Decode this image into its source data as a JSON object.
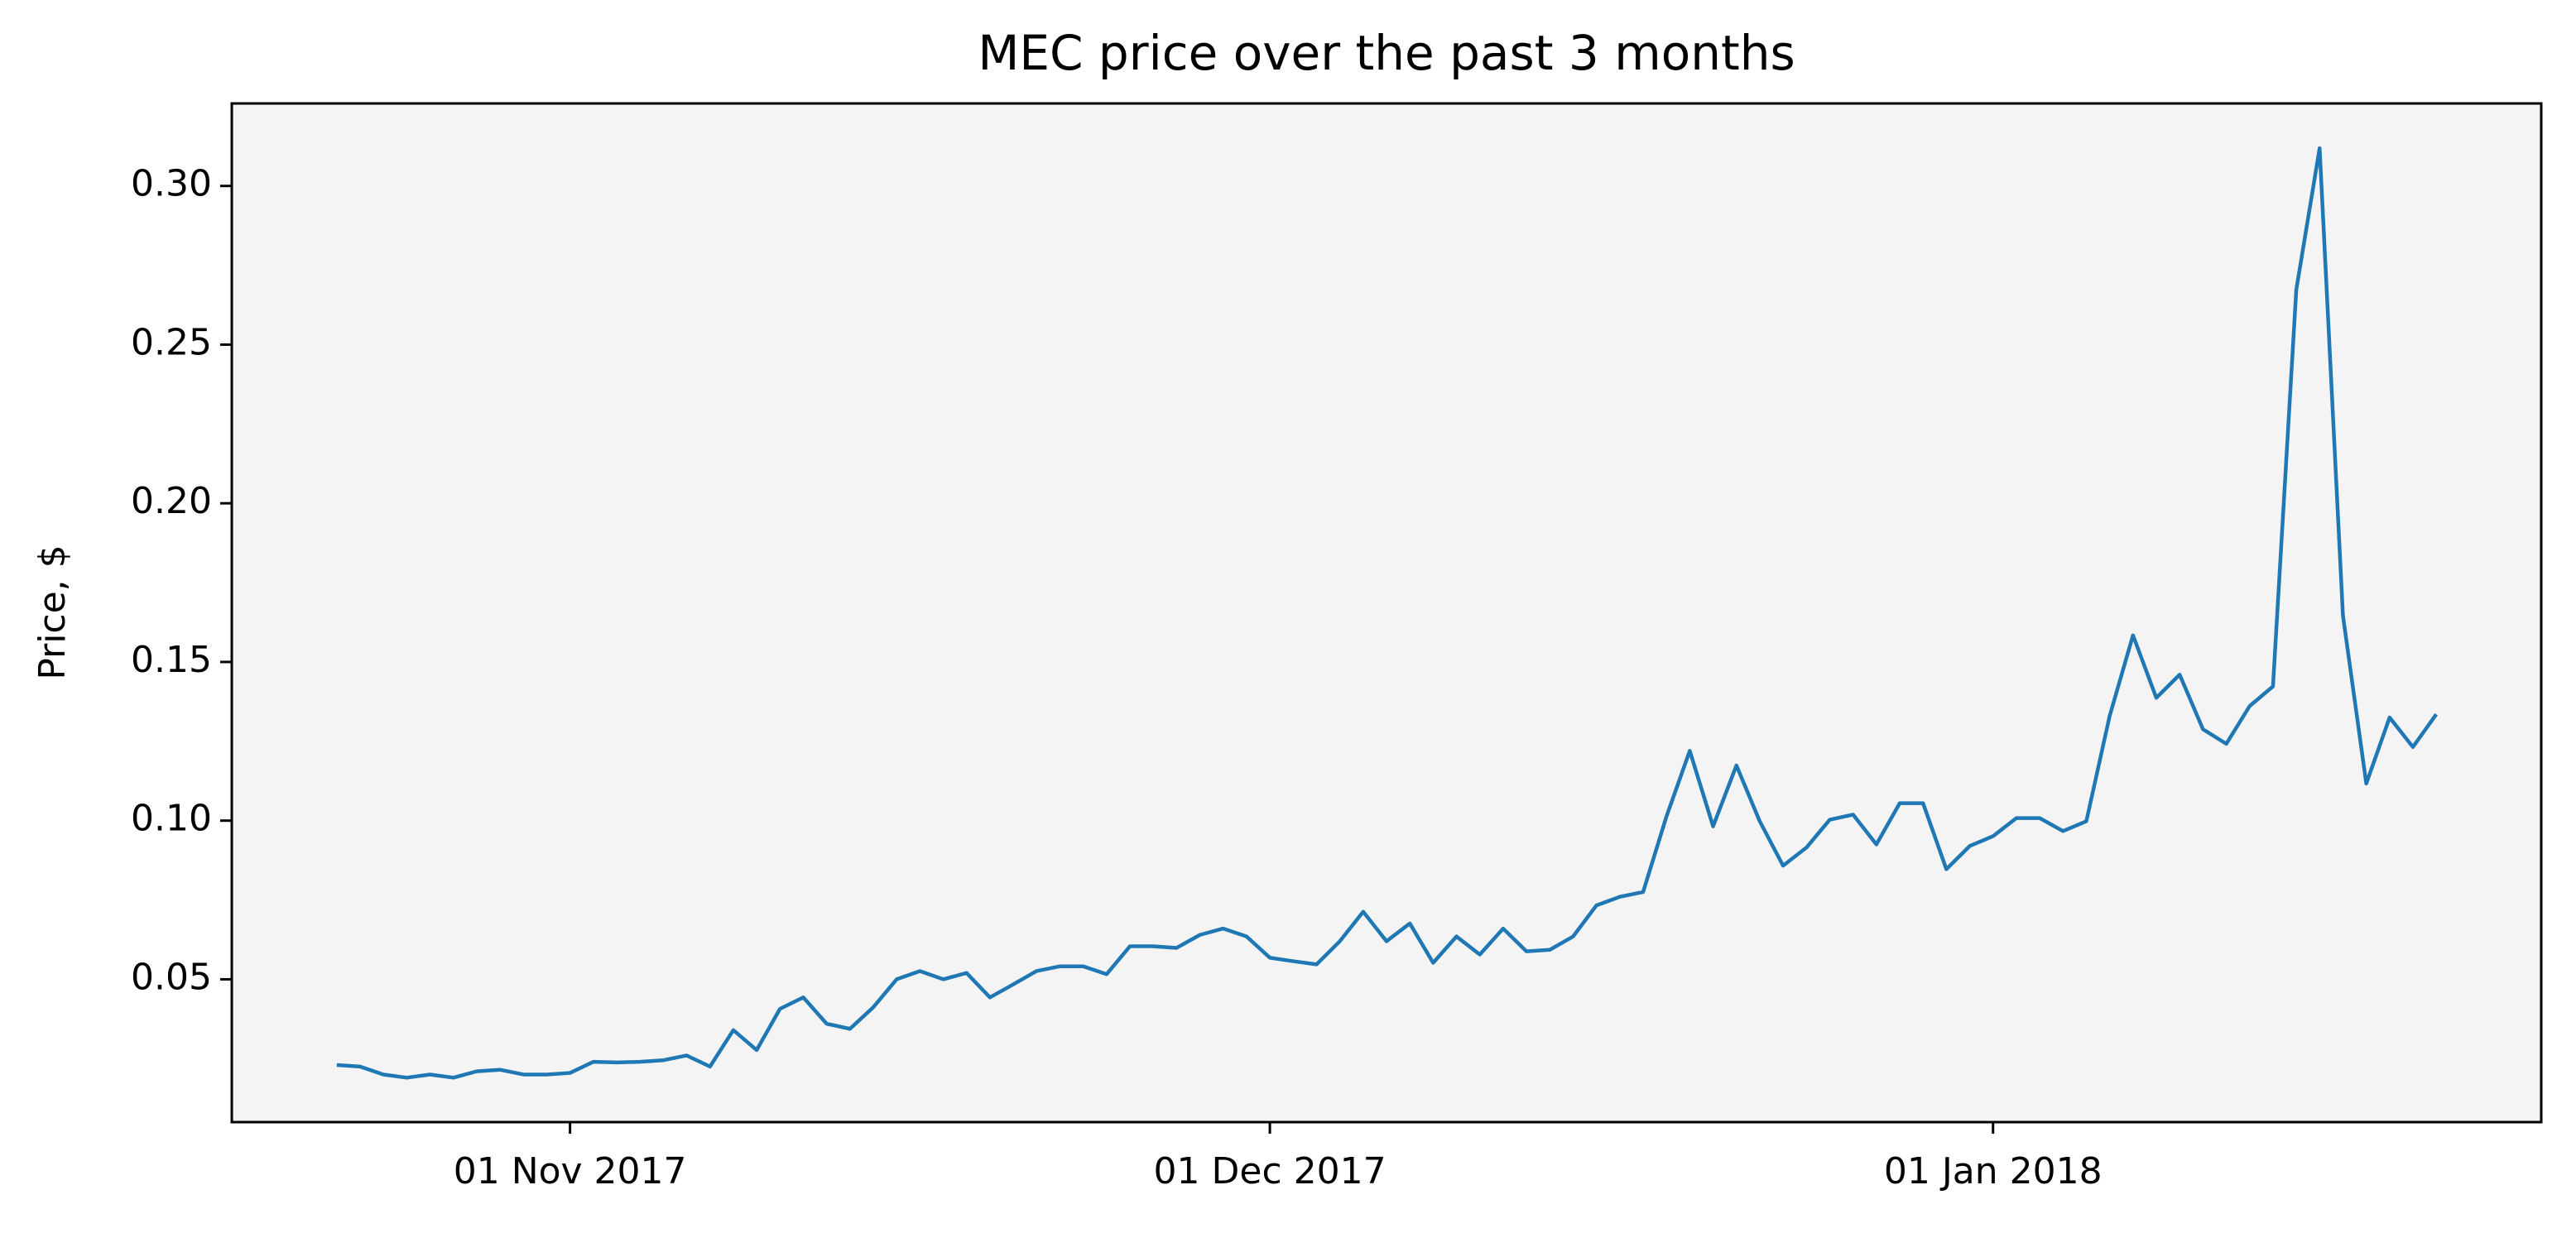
{
  "chart_data": {
    "type": "line",
    "title": "MEC price over the past 3 months",
    "y_label": "Price, $",
    "color": "#1f77b4",
    "background": "#f4f4f4",
    "grid": false,
    "x": [
      "2017-10-22",
      "2017-10-23",
      "2017-10-24",
      "2017-10-25",
      "2017-10-26",
      "2017-10-27",
      "2017-10-28",
      "2017-10-29",
      "2017-10-30",
      "2017-10-31",
      "2017-11-01",
      "2017-11-02",
      "2017-11-03",
      "2017-11-04",
      "2017-11-05",
      "2017-11-06",
      "2017-11-07",
      "2017-11-08",
      "2017-11-09",
      "2017-11-10",
      "2017-11-11",
      "2017-11-12",
      "2017-11-13",
      "2017-11-14",
      "2017-11-15",
      "2017-11-16",
      "2017-11-17",
      "2017-11-18",
      "2017-11-19",
      "2017-11-20",
      "2017-11-21",
      "2017-11-22",
      "2017-11-23",
      "2017-11-24",
      "2017-11-25",
      "2017-11-26",
      "2017-11-27",
      "2017-11-28",
      "2017-11-29",
      "2017-11-30",
      "2017-12-01",
      "2017-12-02",
      "2017-12-03",
      "2017-12-04",
      "2017-12-05",
      "2017-12-06",
      "2017-12-07",
      "2017-12-08",
      "2017-12-09",
      "2017-12-10",
      "2017-12-11",
      "2017-12-12",
      "2017-12-13",
      "2017-12-14",
      "2017-12-15",
      "2017-12-16",
      "2017-12-17",
      "2017-12-18",
      "2017-12-19",
      "2017-12-20",
      "2017-12-21",
      "2017-12-22",
      "2017-12-23",
      "2017-12-24",
      "2017-12-25",
      "2017-12-26",
      "2017-12-27",
      "2017-12-28",
      "2017-12-29",
      "2017-12-30",
      "2017-12-31",
      "2018-01-01",
      "2018-01-02",
      "2018-01-03",
      "2018-01-04",
      "2018-01-05",
      "2018-01-06",
      "2018-01-07",
      "2018-01-08",
      "2018-01-09",
      "2018-01-10",
      "2018-01-11",
      "2018-01-12",
      "2018-01-13",
      "2018-01-14",
      "2018-01-15",
      "2018-01-16",
      "2018-01-17",
      "2018-01-18",
      "2018-01-19",
      "2018-01-20"
    ],
    "values": [
      0.023,
      0.0225,
      0.02,
      0.019,
      0.02,
      0.019,
      0.021,
      0.0215,
      0.02,
      0.02,
      0.0205,
      0.024,
      0.0238,
      0.024,
      0.0245,
      0.026,
      0.0225,
      0.034,
      0.0277,
      0.0407,
      0.0443,
      0.036,
      0.0344,
      0.0412,
      0.05,
      0.0526,
      0.05,
      0.052,
      0.0443,
      0.0484,
      0.0526,
      0.0541,
      0.0541,
      0.0516,
      0.0604,
      0.0604,
      0.0599,
      0.064,
      0.066,
      0.0635,
      0.0568,
      0.0557,
      0.0547,
      0.062,
      0.0713,
      0.062,
      0.0676,
      0.0552,
      0.0635,
      0.0578,
      0.066,
      0.0588,
      0.0593,
      0.0635,
      0.0733,
      0.076,
      0.0775,
      0.1013,
      0.122,
      0.0982,
      0.1174,
      0.0998,
      0.0858,
      0.0915,
      0.1003,
      0.1019,
      0.0925,
      0.1055,
      0.1055,
      0.0847,
      0.092,
      0.0951,
      0.1008,
      0.1008,
      0.0967,
      0.0998,
      0.133,
      0.1584,
      0.1387,
      0.146,
      0.1288,
      0.1242,
      0.1361,
      0.1423,
      0.2673,
      0.3119,
      0.1646,
      0.1117,
      0.1325,
      0.1232,
      0.1335
    ],
    "xlim": [
      "2017-10-17T12:00",
      "2018-01-24T12:00"
    ],
    "xticks": [
      {
        "value": "2017-11-01",
        "label": "01 Nov 2017"
      },
      {
        "value": "2017-12-01",
        "label": "01 Dec 2017"
      },
      {
        "value": "2018-01-01",
        "label": "01 Jan 2018"
      }
    ],
    "ylim": [
      0.005,
      0.326
    ],
    "yticks": [
      {
        "value": 0.05,
        "label": "0.05"
      },
      {
        "value": 0.1,
        "label": "0.10"
      },
      {
        "value": 0.15,
        "label": "0.15"
      },
      {
        "value": 0.2,
        "label": "0.20"
      },
      {
        "value": 0.25,
        "label": "0.25"
      },
      {
        "value": 0.3,
        "label": "0.30"
      }
    ]
  }
}
